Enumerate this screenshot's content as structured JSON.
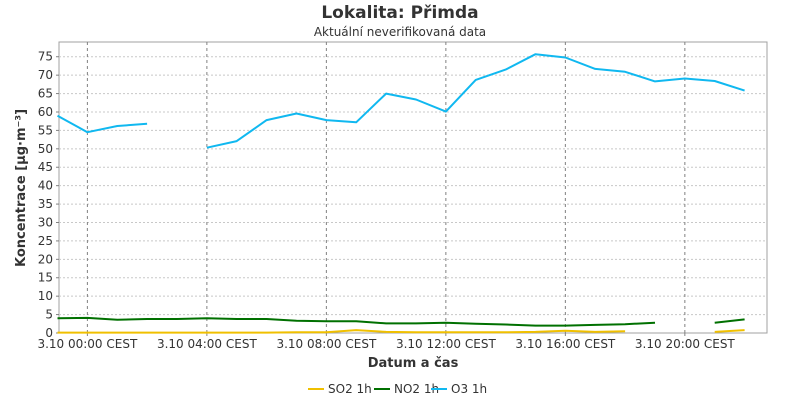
{
  "chart_data": {
    "type": "line",
    "title": "Lokalita: Přimda",
    "subtitle": "Aktuální neverifikovaná data",
    "xlabel": "Datum a čas",
    "ylabel": "Koncentrace [µg·m⁻³]",
    "ylim": [
      0,
      79
    ],
    "yticks": [
      0,
      5,
      10,
      15,
      20,
      25,
      30,
      35,
      40,
      45,
      50,
      55,
      60,
      65,
      70,
      75
    ],
    "xlim": [
      -0.95,
      22.75
    ],
    "xticks": [
      {
        "hour": 0,
        "label": "3.10 00:00 CEST"
      },
      {
        "hour": 4,
        "label": "3.10 04:00 CEST"
      },
      {
        "hour": 8,
        "label": "3.10 08:00 CEST"
      },
      {
        "hour": 12,
        "label": "3.10 12:00 CEST"
      },
      {
        "hour": 16,
        "label": "3.10 16:00 CEST"
      },
      {
        "hour": 20,
        "label": "3.10 20:00 CEST"
      }
    ],
    "x": [
      -1,
      0,
      1,
      2,
      3,
      4,
      5,
      6,
      7,
      8,
      9,
      10,
      11,
      12,
      13,
      14,
      15,
      16,
      17,
      18,
      19,
      20,
      21,
      22
    ],
    "grid": true,
    "legend_position": "bottom",
    "series": [
      {
        "name": "SO2 1h",
        "color": "#f0c000",
        "values": [
          0.1,
          0.1,
          0.1,
          0.1,
          0.1,
          0.1,
          0.1,
          0.1,
          0.2,
          0.2,
          0.8,
          0.3,
          0.2,
          0.2,
          0.2,
          0.2,
          0.3,
          0.6,
          0.3,
          0.5,
          null,
          null,
          0.3,
          0.8
        ]
      },
      {
        "name": "NO2 1h",
        "color": "#007000",
        "values": [
          4.0,
          4.1,
          3.6,
          3.8,
          3.8,
          4.0,
          3.8,
          3.8,
          3.3,
          3.2,
          3.2,
          2.6,
          2.6,
          2.8,
          2.5,
          2.3,
          2.0,
          2.0,
          2.2,
          2.4,
          2.8,
          null,
          2.8,
          3.7
        ]
      },
      {
        "name": "O3 1h",
        "color": "#10b8f0",
        "values": [
          59.0,
          54.5,
          56.2,
          56.8,
          null,
          50.3,
          52.1,
          57.8,
          59.6,
          57.8,
          57.2,
          65.0,
          63.4,
          60.1,
          68.7,
          71.5,
          75.7,
          74.8,
          71.7,
          70.9,
          68.3,
          69.1,
          68.4,
          65.8
        ]
      }
    ]
  }
}
